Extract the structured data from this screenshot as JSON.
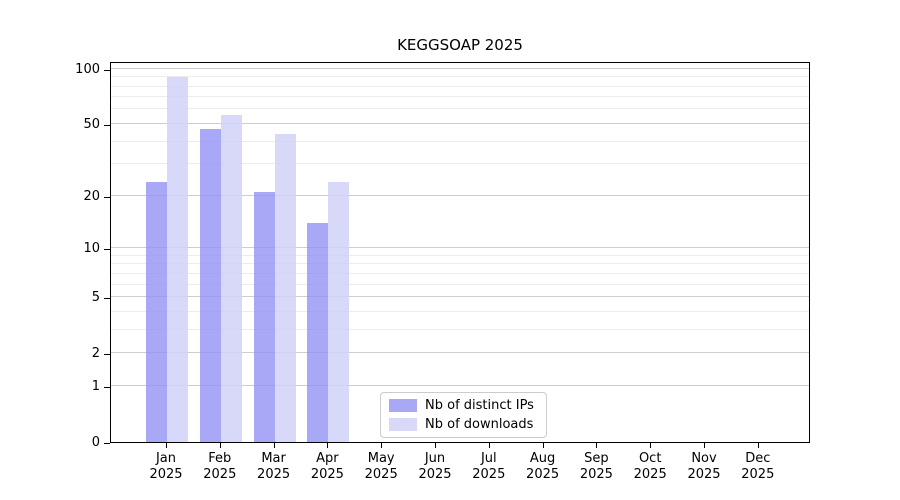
{
  "title": "KEGGSOAP 2025",
  "chart_data": {
    "type": "bar",
    "title": "KEGGSOAP 2025",
    "categories": [
      "Jan",
      "Feb",
      "Mar",
      "Apr",
      "May",
      "Jun",
      "Jul",
      "Aug",
      "Sep",
      "Oct",
      "Nov",
      "Dec"
    ],
    "year_label": "2025",
    "series": [
      {
        "name": "Nb of distinct IPs",
        "color": "#a8a8f4",
        "fill_rgba": "rgba(146,146,244,0.8)",
        "values": [
          24,
          47,
          21,
          14,
          0,
          0,
          0,
          0,
          0,
          0,
          0,
          0
        ]
      },
      {
        "name": "Nb of downloads",
        "color": "#d8d8f8",
        "fill_rgba": "rgba(209,209,247,0.85)",
        "values": [
          90,
          56,
          44,
          24,
          0,
          0,
          0,
          0,
          0,
          0,
          0,
          0
        ]
      }
    ],
    "yscale": "log10(value+1)",
    "ylim": [
      0,
      110
    ],
    "ytick_values": [
      100,
      50,
      20,
      10,
      5,
      2,
      1,
      0
    ],
    "ytick_labels": [
      "100",
      "50",
      "20",
      "10",
      "5",
      "2",
      "1",
      "0"
    ],
    "minor_gridline_values": [
      3,
      4,
      6,
      7,
      8,
      9,
      30,
      40,
      60,
      70,
      80,
      90
    ],
    "grid": true,
    "legend_position": "lower-center-left-inside",
    "axis_color": "#000000",
    "major_grid_color": "#cdcdcd",
    "minor_grid_color": "#ececec"
  }
}
